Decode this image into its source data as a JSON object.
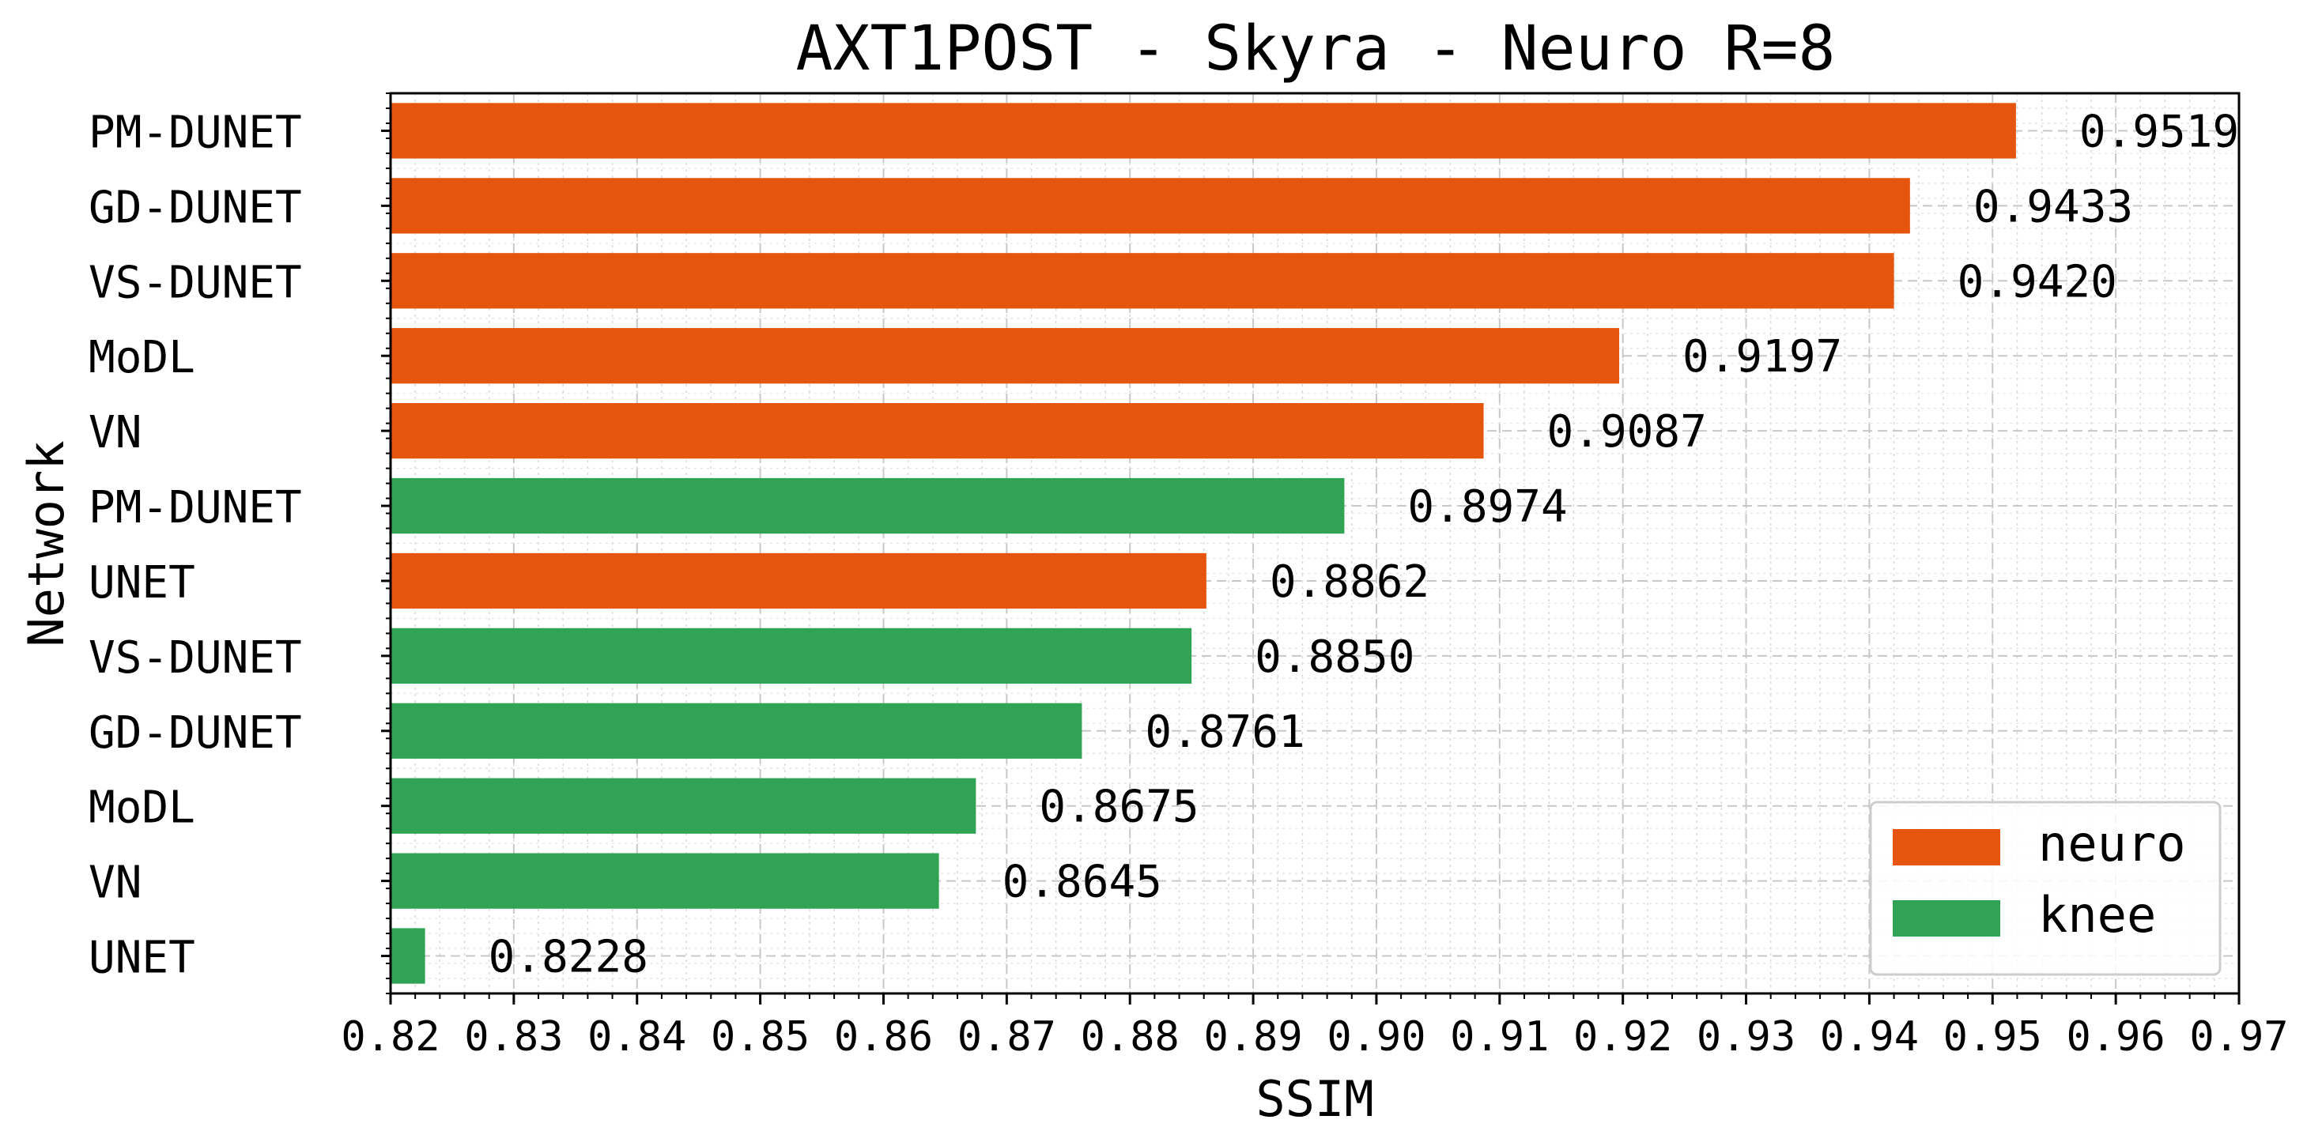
{
  "chart_data": {
    "type": "bar",
    "orientation": "horizontal",
    "title": "AXT1POST - Skyra - Neuro R=8",
    "xlabel": "SSIM",
    "ylabel": "Network",
    "xlim": [
      0.82,
      0.97
    ],
    "x_tick_labels": [
      "0.82",
      "0.83",
      "0.84",
      "0.85",
      "0.86",
      "0.87",
      "0.88",
      "0.89",
      "0.90",
      "0.91",
      "0.92",
      "0.93",
      "0.94",
      "0.95",
      "0.96",
      "0.97"
    ],
    "grid": true,
    "legend_position": "bottom-right",
    "series": [
      {
        "name": "neuro",
        "color": "#e6550d"
      },
      {
        "name": "knee",
        "color": "#31a354"
      }
    ],
    "bars": [
      {
        "category": "PM-DUNET",
        "series": "neuro",
        "value": 0.9519,
        "label": "0.9519"
      },
      {
        "category": "GD-DUNET",
        "series": "neuro",
        "value": 0.9433,
        "label": "0.9433"
      },
      {
        "category": "VS-DUNET",
        "series": "neuro",
        "value": 0.942,
        "label": "0.9420"
      },
      {
        "category": "MoDL",
        "series": "neuro",
        "value": 0.9197,
        "label": "0.9197"
      },
      {
        "category": "VN",
        "series": "neuro",
        "value": 0.9087,
        "label": "0.9087"
      },
      {
        "category": "PM-DUNET",
        "series": "knee",
        "value": 0.8974,
        "label": "0.8974"
      },
      {
        "category": "UNET",
        "series": "neuro",
        "value": 0.8862,
        "label": "0.8862"
      },
      {
        "category": "VS-DUNET",
        "series": "knee",
        "value": 0.885,
        "label": "0.8850"
      },
      {
        "category": "GD-DUNET",
        "series": "knee",
        "value": 0.8761,
        "label": "0.8761"
      },
      {
        "category": "MoDL",
        "series": "knee",
        "value": 0.8675,
        "label": "0.8675"
      },
      {
        "category": "VN",
        "series": "knee",
        "value": 0.8645,
        "label": "0.8645"
      },
      {
        "category": "UNET",
        "series": "knee",
        "value": 0.8228,
        "label": "0.8228"
      }
    ]
  }
}
